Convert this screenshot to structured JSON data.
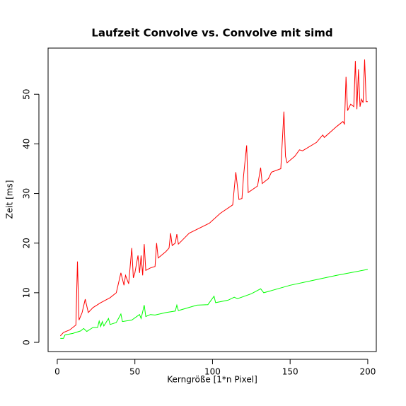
{
  "chart_data": {
    "type": "line",
    "title": "Laufzeit Convolve vs. Convolve mit simd",
    "x_label": "Kerngröße [1*n Pixel]",
    "y_label": "Zeit [ms]",
    "xlim": [
      -5.9,
      205.5
    ],
    "ylim": [
      -1.85,
      59.3
    ],
    "xticks": [
      0,
      50,
      100,
      150,
      200
    ],
    "yticks": [
      0,
      10,
      20,
      30,
      40,
      50
    ],
    "series": [
      {
        "color": "#ff0000",
        "x": [
          2,
          4,
          8,
          12,
          13,
          14,
          16,
          18,
          20,
          23,
          28,
          34,
          38,
          41,
          43,
          44,
          46,
          48,
          49,
          50,
          52,
          53,
          54,
          55,
          56,
          57,
          60,
          63,
          64,
          65,
          70,
          72,
          73,
          74,
          76,
          77,
          78,
          85,
          98,
          105,
          113,
          115,
          117,
          119,
          120,
          122,
          123,
          129,
          131,
          132,
          136,
          138,
          144,
          146,
          147,
          148,
          153,
          156,
          158,
          167,
          171,
          172,
          180,
          184,
          185,
          186,
          187,
          189,
          191,
          192,
          193,
          194,
          195,
          196,
          197,
          198,
          199,
          200
        ],
        "values": [
          1.3,
          2,
          2.5,
          3.5,
          16.3,
          4.5,
          6,
          8.7,
          6,
          7,
          8,
          9,
          10,
          14,
          11.5,
          13.5,
          11.8,
          19,
          13,
          14,
          17.5,
          14,
          17.5,
          13.5,
          19.8,
          14.5,
          15,
          15.3,
          20,
          17,
          18.3,
          19,
          22,
          19.5,
          20,
          21.8,
          19.8,
          22,
          24,
          26,
          27.7,
          34.3,
          28.8,
          29,
          33.5,
          39.7,
          30.2,
          31.5,
          35.2,
          32,
          33,
          34.3,
          35,
          46.5,
          37.5,
          36.2,
          37.5,
          38.8,
          38.6,
          40.3,
          41.8,
          41.3,
          43.5,
          44.5,
          44,
          53.5,
          46.7,
          48,
          47.5,
          56.7,
          47,
          55,
          47.5,
          49,
          48.3,
          57,
          48.5,
          48.5
        ]
      },
      {
        "color": "#00ff00",
        "x": [
          2,
          4,
          5,
          10,
          15,
          17,
          19,
          23,
          26,
          27,
          28,
          29,
          30,
          33,
          34,
          38,
          41,
          42,
          48,
          53,
          54,
          56,
          57,
          60,
          63,
          70,
          76,
          77,
          78,
          90,
          97,
          101,
          102,
          110,
          114,
          116,
          125,
          131,
          133,
          150,
          165,
          180,
          200
        ],
        "values": [
          0.8,
          0.8,
          1.5,
          1.8,
          2.3,
          2.8,
          2.2,
          3,
          3,
          4.3,
          3.2,
          4.2,
          3.3,
          4.8,
          3.6,
          4,
          5.7,
          4.2,
          4.5,
          5.6,
          4.8,
          7.5,
          5.2,
          5.6,
          5.5,
          6,
          6.3,
          7.5,
          6.4,
          7.5,
          7.6,
          9.3,
          8,
          8.5,
          9.1,
          8.8,
          9.8,
          10.8,
          10,
          11.5,
          12.5,
          13.5,
          14.7
        ]
      }
    ]
  }
}
